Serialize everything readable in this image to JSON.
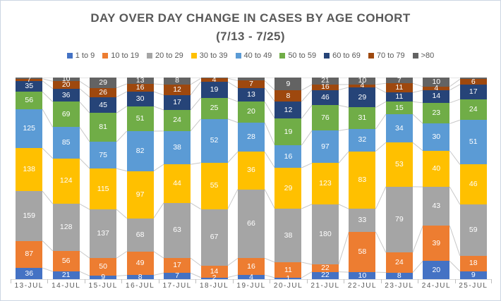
{
  "title": {
    "line1": "DAY OVER DAY CHANGE IN CASES BY AGE COHORT",
    "line2": "(7/13 - 7/25)"
  },
  "colors": {
    "title_text": "#595959",
    "legend_text": "#595959",
    "axis_text": "#595959",
    "axis_line": "#d9d9d9",
    "connector_line": "#c8c8c8",
    "data_label": "#ffffff"
  },
  "chart_data": {
    "type": "bar",
    "stacking": "100%",
    "title": "DAY OVER DAY CHANGE IN CASES BY AGE COHORT (7/13 - 7/25)",
    "legend_position": "top",
    "gridlines": false,
    "connector_lines": true,
    "data_labels": "raw values, white, centered in segments",
    "categories": [
      "13-JUL",
      "14-JUL",
      "15-JUL",
      "16-JUL",
      "17-JUL",
      "18-JUL",
      "19-JUL",
      "20-JUL",
      "21-JUL",
      "22-JUL",
      "23-JUL",
      "24-JUL",
      "25-JUL"
    ],
    "series": [
      {
        "name": "1 to 9",
        "color": "#4472C4",
        "values": [
          36,
          21,
          9,
          8,
          7,
          2,
          4,
          1,
          22,
          10,
          8,
          20,
          9
        ]
      },
      {
        "name": "10 to 19",
        "color": "#ED7D31",
        "values": [
          87,
          56,
          50,
          49,
          17,
          14,
          16,
          11,
          22,
          58,
          24,
          39,
          18
        ]
      },
      {
        "name": "20 to 29",
        "color": "#A5A5A5",
        "values": [
          159,
          128,
          137,
          68,
          63,
          67,
          66,
          38,
          180,
          33,
          79,
          43,
          59
        ]
      },
      {
        "name": "30 to 39",
        "color": "#FFC000",
        "values": [
          138,
          124,
          115,
          97,
          44,
          55,
          36,
          29,
          123,
          83,
          53,
          40,
          46
        ]
      },
      {
        "name": "40 to 49",
        "color": "#5B9BD5",
        "values": [
          125,
          85,
          75,
          82,
          38,
          52,
          28,
          16,
          97,
          32,
          34,
          30,
          51
        ]
      },
      {
        "name": "50 to 59",
        "color": "#70AD47",
        "values": [
          56,
          69,
          81,
          51,
          24,
          25,
          20,
          19,
          76,
          31,
          15,
          23,
          24
        ]
      },
      {
        "name": "60 to 69",
        "color": "#264478",
        "values": [
          35,
          36,
          45,
          30,
          17,
          19,
          13,
          12,
          46,
          29,
          11,
          14,
          17
        ]
      },
      {
        "name": "70 to 79",
        "color": "#9E480E",
        "values": [
          7,
          20,
          26,
          16,
          12,
          4,
          7,
          8,
          16,
          4,
          11,
          4,
          6
        ]
      },
      {
        "name": ">80",
        "color": "#636363",
        "values": [
          4,
          10,
          29,
          13,
          8,
          1,
          3,
          9,
          21,
          10,
          7,
          10,
          2
        ],
        "hidden_label_indices": [
          0,
          5,
          6,
          12
        ]
      }
    ]
  }
}
